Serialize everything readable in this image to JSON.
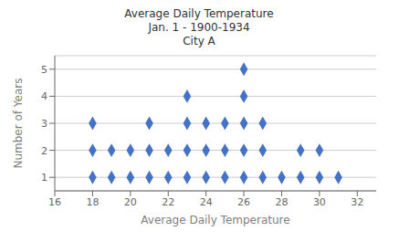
{
  "chart_data": {
    "type": "scatter",
    "title": "Average Daily Temperature\nJan. 1 - 1900-1934\nCity A",
    "xlabel": "Average Daily Temperature",
    "ylabel": "Number of Years",
    "x": [
      26,
      23,
      26,
      18,
      21,
      23,
      24,
      25,
      26,
      27,
      18,
      19,
      20,
      21,
      22,
      23,
      24,
      25,
      26,
      27,
      29,
      30,
      18,
      19,
      20,
      21,
      22,
      23,
      24,
      25,
      26,
      27,
      28,
      29,
      30,
      31
    ],
    "values": [
      5,
      4,
      4,
      3,
      3,
      3,
      3,
      3,
      3,
      3,
      2,
      2,
      2,
      2,
      2,
      2,
      2,
      2,
      2,
      2,
      2,
      2,
      1,
      1,
      1,
      1,
      1,
      1,
      1,
      1,
      1,
      1,
      1,
      1,
      1,
      1
    ],
    "xlim": [
      16,
      33
    ],
    "ylim": [
      0.5,
      5.5
    ],
    "xticks": [
      16,
      18,
      20,
      22,
      24,
      26,
      28,
      30,
      32
    ],
    "yticks": [
      1,
      2,
      3,
      4,
      5
    ],
    "color": "#4472C4",
    "marker": "diamond",
    "grid": true
  }
}
